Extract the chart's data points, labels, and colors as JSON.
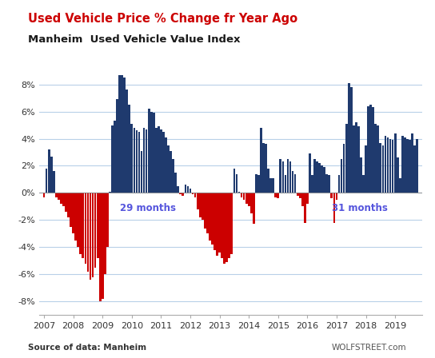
{
  "title1": "Used Vehicle Price % Change fr Year Ago",
  "title2": "Manheim  Used Vehicle Value Index",
  "source_left": "Source of data: Manheim",
  "source_right": "WOLFSTREET.com",
  "label_29": "29 months",
  "label_31": "31 months",
  "bar_color_pos": "#1f3a6e",
  "bar_color_neg": "#cc0000",
  "label_color": "#5555dd",
  "title1_color": "#cc0000",
  "title2_color": "#1a1a1a",
  "grid_color": "#b8d0e8",
  "yticks": [
    -8,
    -6,
    -4,
    -2,
    0,
    2,
    4,
    6,
    8
  ],
  "ytick_labels": [
    "-8%",
    "-6%",
    "-4%",
    "-2%",
    "0%",
    "2%",
    "4%",
    "6%",
    "8%"
  ],
  "monthly_data": [
    -0.3,
    1.8,
    3.2,
    2.7,
    1.6,
    -0.3,
    -0.5,
    -0.8,
    -1.0,
    -1.4,
    -1.8,
    -2.5,
    -3.0,
    -3.5,
    -4.0,
    -4.5,
    -4.8,
    -5.2,
    -5.8,
    -6.4,
    -6.2,
    -5.5,
    -4.8,
    -8.0,
    -7.8,
    -6.0,
    -4.0,
    0.1,
    5.0,
    5.3,
    6.9,
    8.7,
    8.7,
    8.5,
    7.6,
    6.5,
    5.1,
    4.8,
    4.6,
    4.5,
    3.1,
    4.8,
    4.7,
    6.2,
    6.0,
    5.9,
    4.8,
    4.9,
    4.7,
    4.5,
    4.1,
    3.5,
    3.1,
    2.5,
    1.5,
    0.5,
    -0.1,
    -0.2,
    0.6,
    0.5,
    0.3,
    -0.1,
    -0.3,
    -1.2,
    -1.8,
    -2.0,
    -2.6,
    -3.0,
    -3.5,
    -3.8,
    -4.2,
    -4.6,
    -4.4,
    -4.8,
    -5.2,
    -5.1,
    -4.8,
    -4.5,
    1.8,
    1.4,
    0.1,
    -0.3,
    -0.5,
    -0.8,
    -1.0,
    -1.5,
    -2.3,
    1.4,
    1.3,
    4.8,
    3.7,
    3.6,
    1.8,
    1.1,
    1.1,
    -0.3,
    -0.4,
    2.5,
    2.3,
    1.3,
    2.5,
    2.3,
    1.6,
    1.4,
    -0.2,
    -0.4,
    -1.0,
    -2.2,
    -0.8,
    2.9,
    1.3,
    2.5,
    2.3,
    2.2,
    2.0,
    1.9,
    1.4,
    1.3,
    -0.4,
    -2.2,
    -0.5,
    1.3,
    2.5,
    3.6,
    5.1,
    8.1,
    7.8,
    5.0,
    5.2,
    4.9,
    2.6,
    1.3,
    3.5,
    6.4,
    6.5,
    6.3,
    5.1,
    5.0,
    3.7,
    3.5,
    4.2,
    4.1,
    4.0,
    3.9,
    4.4,
    2.6,
    1.1,
    4.2,
    4.1,
    4.0,
    3.9,
    4.4,
    3.5,
    4.0
  ]
}
